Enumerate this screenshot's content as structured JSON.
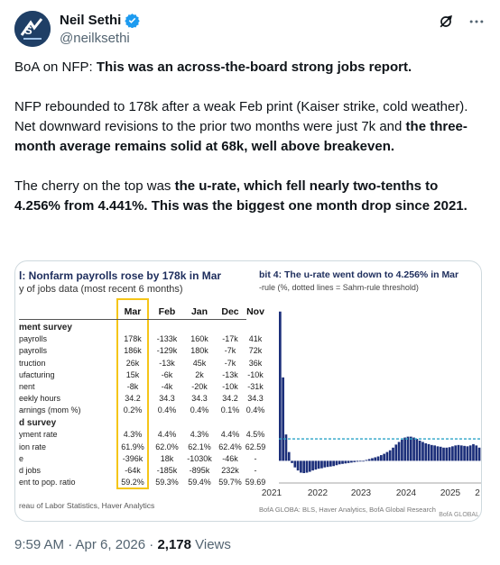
{
  "author": {
    "name": "Neil Sethi",
    "handle": "@neilksethi",
    "verified_color": "#1d9bf0"
  },
  "icons": [
    "grok-icon",
    "more-icon",
    "verified-badge-icon"
  ],
  "tweet": {
    "p1": {
      "normal": "BoA on NFP: ",
      "bold": "This was an across-the-board strong jobs report."
    },
    "p2": {
      "normal": " NFP rebounded to 178k after a weak Feb print (Kaiser strike, cold weather). Net downward revisions to the prior two months  were just 7k and ",
      "bold": "the three-month average remains solid at 68k, well above breakeven."
    },
    "p3": {
      "normal": "The cherry on the top was ",
      "bold": "the u-rate, which fell nearly two-tenths to 4.256% from 4.441%. This was the biggest  one month drop since 2021."
    }
  },
  "table": {
    "title": "l: Nonfarm payrolls rose by 178k in Mar",
    "subtitle": "y of jobs data (most recent 6 months)",
    "columns": [
      "Mar",
      "Feb",
      "Jan",
      "Dec",
      "Nov"
    ],
    "rows": [
      {
        "label": "ment survey",
        "bold": true,
        "cells": [
          "",
          "",
          "",
          "",
          ""
        ]
      },
      {
        "label": "payrolls",
        "cells": [
          "178k",
          "-133k",
          "160k",
          "-17k",
          "41k"
        ]
      },
      {
        "label": "payrolls",
        "cells": [
          "186k",
          "-129k",
          "180k",
          "-7k",
          "72k"
        ]
      },
      {
        "label": "truction",
        "cells": [
          "26k",
          "-13k",
          "45k",
          "-7k",
          "36k"
        ]
      },
      {
        "label": "ufacturing",
        "cells": [
          "15k",
          "-6k",
          "2k",
          "-13k",
          "-10k"
        ]
      },
      {
        "label": "nent",
        "cells": [
          "-8k",
          "-4k",
          "-20k",
          "-10k",
          "-31k"
        ]
      },
      {
        "label": "eekly hours",
        "cells": [
          "34.2",
          "34.3",
          "34.3",
          "34.2",
          "34.3"
        ]
      },
      {
        "label": "arnings (mom %)",
        "cells": [
          "0.2%",
          "0.4%",
          "0.4%",
          "0.1%",
          "0.4%"
        ]
      },
      {
        "label": "d survey",
        "bold": true,
        "cells": [
          "",
          "",
          "",
          "",
          ""
        ]
      },
      {
        "label": "yment rate",
        "cells": [
          "4.3%",
          "4.4%",
          "4.3%",
          "4.4%",
          "4.5%"
        ]
      },
      {
        "label": "ion rate",
        "cells": [
          "61.9%",
          "62.0%",
          "62.1%",
          "62.4%",
          "62.59"
        ]
      },
      {
        "label": "e",
        "cells": [
          "-396k",
          "18k",
          "-1030k",
          "-46k",
          "-"
        ]
      },
      {
        "label": "d jobs",
        "cells": [
          "-64k",
          "-185k",
          "-895k",
          "232k",
          "-"
        ]
      },
      {
        "label": "ent to pop. ratio",
        "cells": [
          "59.2%",
          "59.3%",
          "59.4%",
          "59.7%",
          "59.69"
        ]
      }
    ],
    "source": "reau of Labor Statistics, Haver Analytics",
    "highlight_color": "#f5c518"
  },
  "chart": {
    "title": "bit 4: The u-rate went down to 4.256% in Mar",
    "subtitle": "-rule (%, dotted lines = Sahm-rule threshold)",
    "x_ticks": [
      "2021",
      "2022",
      "2023",
      "2024",
      "2025",
      "2"
    ],
    "footer_left": "BofA GLOBA",
    "footer_credit": ": BLS, Haver Analytics, BofA Global Research",
    "footer_right": "BofA GLOBAL",
    "bar_color": "#1c2f7a",
    "threshold_color": "#2aa3c7"
  },
  "chart_data": {
    "type": "bar",
    "title": "bit 4: The u-rate went down to 4.256% in Mar",
    "x_ticks": [
      "2021",
      "2022",
      "2023",
      "2024",
      "2025"
    ],
    "threshold": 0.5,
    "ylim": [
      -0.3,
      3.6
    ],
    "values": [
      3.4,
      1.9,
      0.6,
      0.2,
      -0.05,
      -0.15,
      -0.22,
      -0.27,
      -0.28,
      -0.27,
      -0.25,
      -0.22,
      -0.2,
      -0.18,
      -0.17,
      -0.15,
      -0.14,
      -0.13,
      -0.12,
      -0.1,
      -0.08,
      -0.07,
      -0.06,
      -0.05,
      -0.04,
      -0.03,
      -0.02,
      -0.01,
      0.0,
      0.02,
      0.04,
      0.06,
      0.08,
      0.1,
      0.13,
      0.16,
      0.2,
      0.24,
      0.3,
      0.37,
      0.43,
      0.48,
      0.53,
      0.55,
      0.55,
      0.53,
      0.5,
      0.46,
      0.43,
      0.4,
      0.38,
      0.36,
      0.35,
      0.33,
      0.32,
      0.3,
      0.3,
      0.31,
      0.33,
      0.35,
      0.36,
      0.35,
      0.34,
      0.33,
      0.35,
      0.38,
      0.35,
      0.3
    ]
  },
  "meta": {
    "time": "9:59 AM · Apr 6, 2026 · ",
    "views_count": "2,178",
    "views_label": " Views"
  }
}
